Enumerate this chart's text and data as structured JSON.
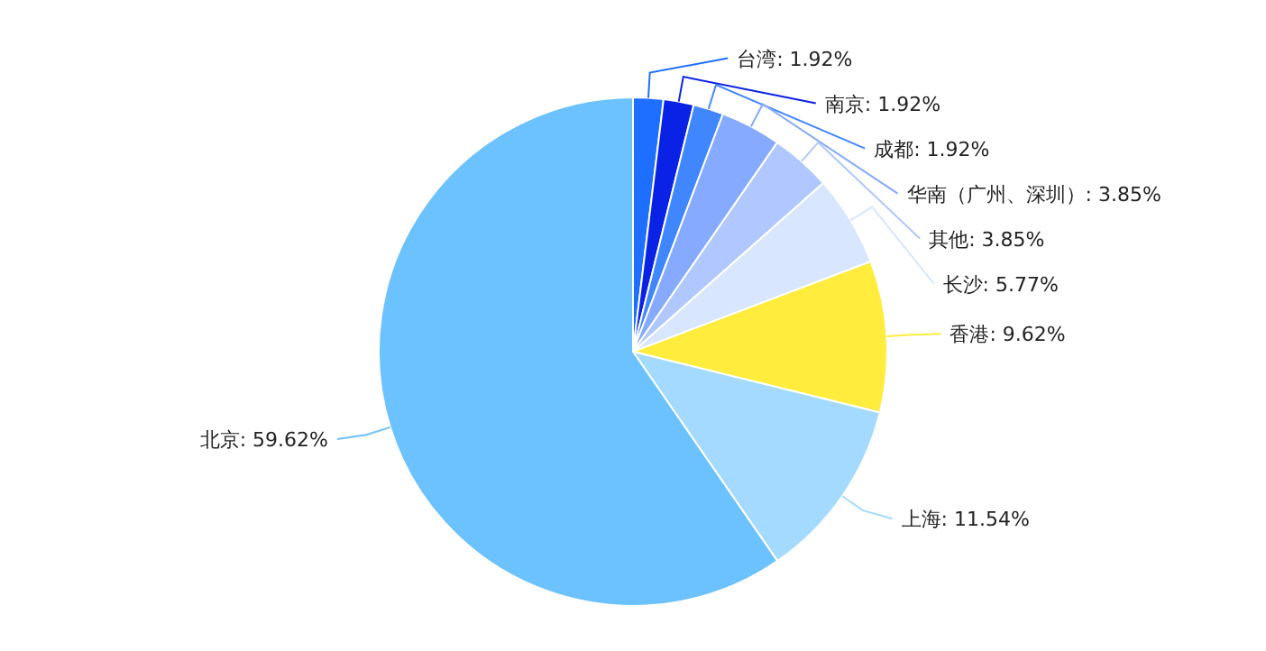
{
  "chart_data": {
    "type": "pie",
    "categories": [
      "台湾",
      "南京",
      "成都",
      "华南（广州、深圳）",
      "其他",
      "长沙",
      "香港",
      "上海",
      "北京"
    ],
    "values": [
      1.92,
      1.92,
      1.92,
      3.85,
      3.85,
      5.77,
      9.62,
      11.54,
      59.62
    ],
    "colors": [
      "#1e6fff",
      "#0a22e6",
      "#3f86ff",
      "#86aaff",
      "#b0c8ff",
      "#d8e6ff",
      "#ffec3d",
      "#a4daff",
      "#6cc1ff"
    ],
    "value_labels": [
      ": 1.92%",
      ": 1.92%",
      ": 1.92%",
      ": 3.85%",
      ": 3.85%",
      ": 5.77%",
      ": 9.62%",
      ": 11.54%",
      ": 59.62%"
    ],
    "legend": false
  }
}
